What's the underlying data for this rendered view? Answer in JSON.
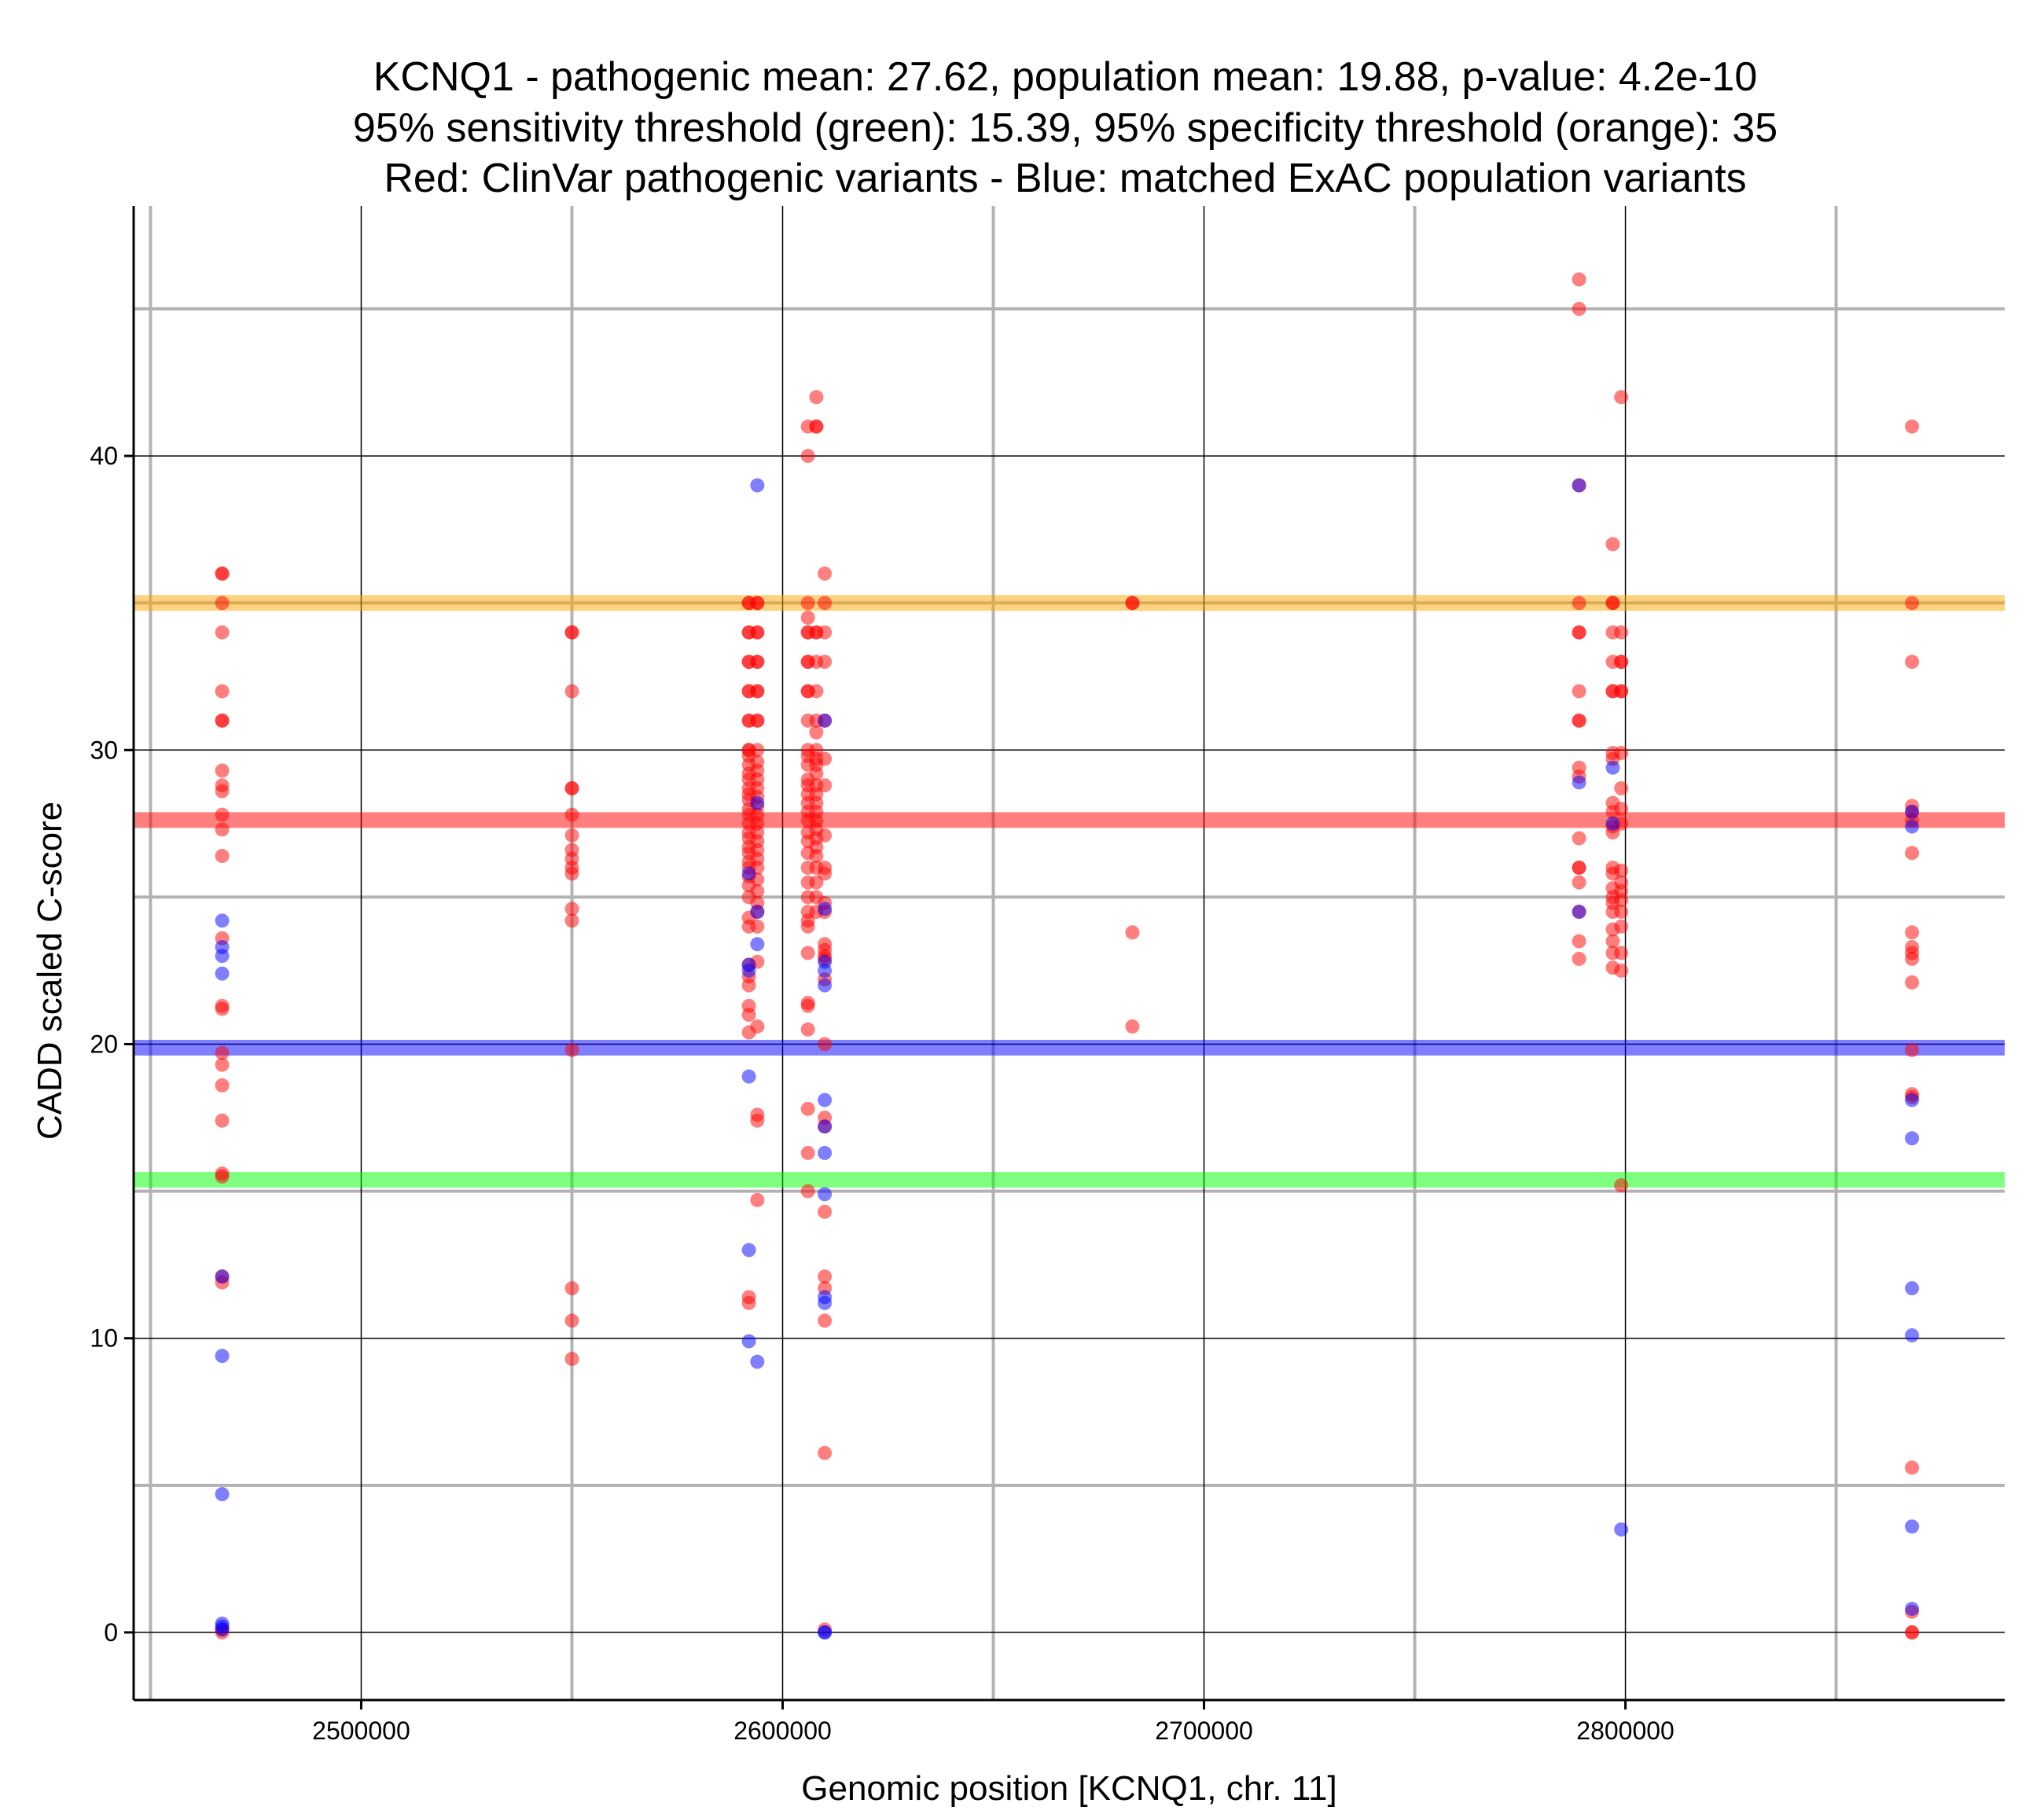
{
  "chart_data": {
    "type": "scatter",
    "title": [
      "KCNQ1 - pathogenic mean: 27.62, population mean: 19.88, p-value: 4.2e-10",
      "95% sensitivity threshold (green): 15.39, 95% specificity threshold (orange): 35",
      "Red: ClinVar pathogenic variants - Blue: matched ExAC population variants"
    ],
    "xlabel": "Genomic position [KCNQ1, chr. 11]",
    "ylabel": "CADD scaled C-score",
    "xlim": [
      2446000,
      2890000
    ],
    "ylim": [
      -2.3,
      48.5
    ],
    "x_ticks": [
      2500000,
      2600000,
      2700000,
      2800000
    ],
    "y_ticks": [
      0,
      10,
      20,
      30,
      40
    ],
    "grid": true,
    "reference_lines": [
      {
        "value": 35,
        "color": "#ffa500"
      },
      {
        "value": 27.62,
        "color": "#ff0000"
      },
      {
        "value": 19.88,
        "color": "#0000ff"
      },
      {
        "value": 15.39,
        "color": "#00ff00"
      }
    ],
    "series": [
      {
        "color": "#ff0000",
        "groups": [
          {
            "x": 2467000,
            "y": [
              36,
              36,
              35,
              34,
              32,
              31,
              31,
              29.3,
              28.8,
              28.6,
              27.8,
              27.3,
              26.4,
              23.6,
              21.3,
              21.2,
              19.7,
              19.3,
              18.6,
              17.4,
              15.6,
              15.5,
              12.1,
              11.9,
              0.1,
              0
            ]
          },
          {
            "x": 2550000,
            "y": [
              34,
              34,
              32,
              28.7,
              28.7,
              27.8,
              27.1,
              26.6,
              26.3,
              26,
              25.8,
              24.6,
              24.2,
              19.8,
              11.7,
              10.6,
              9.3
            ]
          },
          {
            "x": 2592000,
            "y": [
              35,
              35,
              34,
              34,
              33,
              33,
              32,
              32,
              31,
              31,
              30,
              30,
              29.8,
              29.5,
              29.2,
              29,
              28.7,
              28.5,
              28.3,
              28,
              27.8,
              27.5,
              27.2,
              27,
              26.7,
              26.5,
              26.2,
              26,
              25.7,
              25.4,
              25,
              24.3,
              24,
              22.7,
              22.3,
              22,
              21.3,
              21,
              20.4,
              11.4,
              11.2
            ]
          },
          {
            "x": 2594000,
            "y": [
              35,
              35,
              34,
              34,
              33,
              33,
              32,
              32,
              31,
              31,
              30,
              29.6,
              29.3,
              29,
              28.7,
              28.4,
              28.1,
              27.8,
              27.5,
              27.2,
              26.9,
              26.6,
              26.3,
              26,
              25.6,
              25.2,
              24.8,
              24.5,
              24,
              22.8,
              20.6,
              17.6,
              17.4,
              14.7
            ]
          },
          {
            "x": 2606000,
            "y": [
              41,
              40,
              35,
              34.5,
              34,
              34,
              33,
              33,
              32,
              32,
              31,
              30,
              29.8,
              29.5,
              29,
              28.8,
              28.5,
              28.2,
              27.9,
              27.6,
              27.2,
              26.9,
              26.5,
              26,
              25.5,
              25,
              24.5,
              24.2,
              24,
              23.1,
              21.4,
              21.3,
              20.5,
              17.8,
              16.3,
              15
            ]
          },
          {
            "x": 2608000,
            "y": [
              42,
              41,
              41,
              34,
              34,
              33,
              32,
              31,
              30.6,
              30,
              29.7,
              29.5,
              29.2,
              28.8,
              28.5,
              28.2,
              27.9,
              27.6,
              27.3,
              27,
              26.7,
              26.4,
              26,
              25.5,
              25,
              24.5
            ]
          },
          {
            "x": 2610000,
            "y": [
              36,
              35,
              34,
              33,
              31,
              29.7,
              28.8,
              27.1,
              26,
              25.8,
              24.5,
              24.8,
              23.4,
              23.2,
              23,
              22.9,
              22.2,
              20,
              17.5,
              17.2,
              14.3,
              12.1,
              11.7,
              10.6,
              6.1,
              0.1
            ]
          },
          {
            "x": 2683000,
            "y": [
              35,
              35,
              23.8,
              20.6
            ]
          },
          {
            "x": 2789000,
            "y": [
              46,
              45,
              39,
              35,
              34,
              34,
              32,
              31,
              31,
              29.4,
              29.1,
              27,
              26,
              26,
              25.5,
              24.5,
              23.5,
              22.9
            ]
          },
          {
            "x": 2797000,
            "y": [
              37,
              35,
              35,
              34,
              33,
              32,
              32,
              29.9,
              29.7,
              28.2,
              27.9,
              27.4,
              27.2,
              26,
              25.8,
              25.3,
              25,
              24.8,
              24.5,
              23.9,
              23.5,
              23.1,
              22.6
            ]
          },
          {
            "x": 2799000,
            "y": [
              42,
              34,
              33,
              33,
              32,
              32,
              29.9,
              28.7,
              28,
              27.5,
              25.9,
              25.5,
              25.2,
              24.9,
              24.5,
              24,
              23.1,
              22.5,
              15.2
            ]
          },
          {
            "x": 2868000,
            "y": [
              41,
              35,
              33,
              28.1,
              27.9,
              27.6,
              26.5,
              23.8,
              23.3,
              23.1,
              22.9,
              22.1,
              19.8,
              18.3,
              18.2,
              5.6,
              0.7,
              0,
              0
            ]
          }
        ]
      },
      {
        "color": "#0000ff",
        "groups": [
          {
            "x": 2467000,
            "y": [
              24.2,
              23.3,
              23,
              22.4,
              12.1,
              9.4,
              4.7,
              0.3,
              0.2,
              0.1
            ]
          },
          {
            "x": 2592000,
            "y": [
              25.8,
              22.7,
              22.5,
              18.9,
              13,
              9.9
            ]
          },
          {
            "x": 2594000,
            "y": [
              39,
              28.2,
              24.5,
              23.4,
              9.2
            ]
          },
          {
            "x": 2610000,
            "y": [
              31,
              24.6,
              22.8,
              22.5,
              22,
              18.1,
              17.2,
              16.3,
              14.9,
              11.4,
              11.2,
              0,
              0
            ]
          },
          {
            "x": 2789000,
            "y": [
              39,
              28.9,
              24.5
            ]
          },
          {
            "x": 2797000,
            "y": [
              27.5,
              29.4
            ]
          },
          {
            "x": 2799000,
            "y": [
              3.5
            ]
          },
          {
            "x": 2868000,
            "y": [
              27.9,
              27.4,
              18.1,
              16.8,
              11.7,
              10.1,
              3.6,
              0.8
            ]
          }
        ]
      }
    ]
  }
}
